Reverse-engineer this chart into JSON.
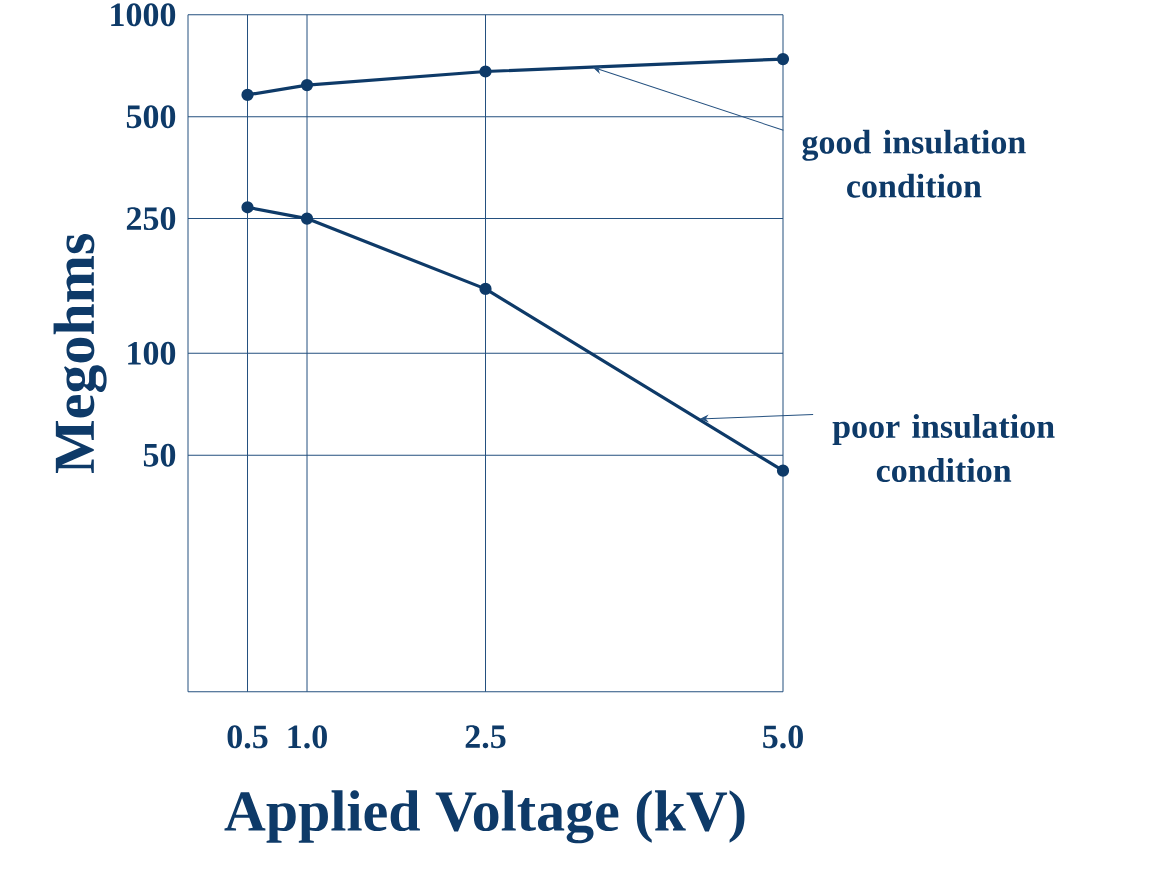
{
  "chart_data": {
    "type": "line",
    "xlabel": "Applied Voltage (kV)",
    "ylabel": "Megohms",
    "x": [
      0.5,
      1.0,
      2.5,
      5.0
    ],
    "series": [
      {
        "color": "#0e3a68",
        "values": [
          580,
          620,
          680,
          740
        ]
      },
      {
        "color": "#0e3a68",
        "values": [
          270,
          250,
          155,
          45
        ]
      }
    ],
    "xlim": [
      0,
      5.0
    ],
    "xticks": [
      {
        "value": 0.5,
        "label": "0.5"
      },
      {
        "value": 1.0,
        "label": "1.0"
      },
      {
        "value": 2.5,
        "label": "2.5"
      },
      {
        "value": 5.0,
        "label": "5.0"
      }
    ],
    "ylim": [
      10,
      1000
    ],
    "yticks": [
      50,
      100,
      250,
      500,
      1000
    ],
    "log": "y",
    "grid": true,
    "marker": "circle",
    "line_style": "solid",
    "annotations": [
      {
        "text": "good insulation condition",
        "x": 3.4,
        "y": 700
      },
      {
        "text": "poor insulation condition",
        "x": 4.3,
        "y": 64
      }
    ]
  }
}
